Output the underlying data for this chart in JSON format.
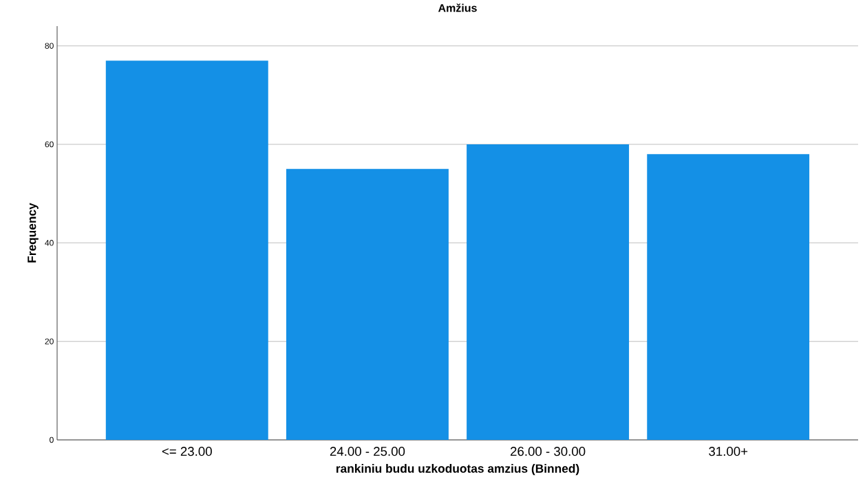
{
  "chart_data": {
    "type": "bar",
    "title": "Amžius",
    "xlabel": "rankiniu budu uzkoduotas amzius (Binned)",
    "ylabel": "Frequency",
    "categories": [
      "<= 23.00",
      "24.00 - 25.00",
      "26.00 - 30.00",
      "31.00+"
    ],
    "values": [
      77,
      55,
      60,
      58
    ],
    "color": "#1490e6",
    "ylim": [
      0,
      84
    ],
    "yticks": [
      0,
      20,
      40,
      60,
      80
    ],
    "grid": "y"
  }
}
